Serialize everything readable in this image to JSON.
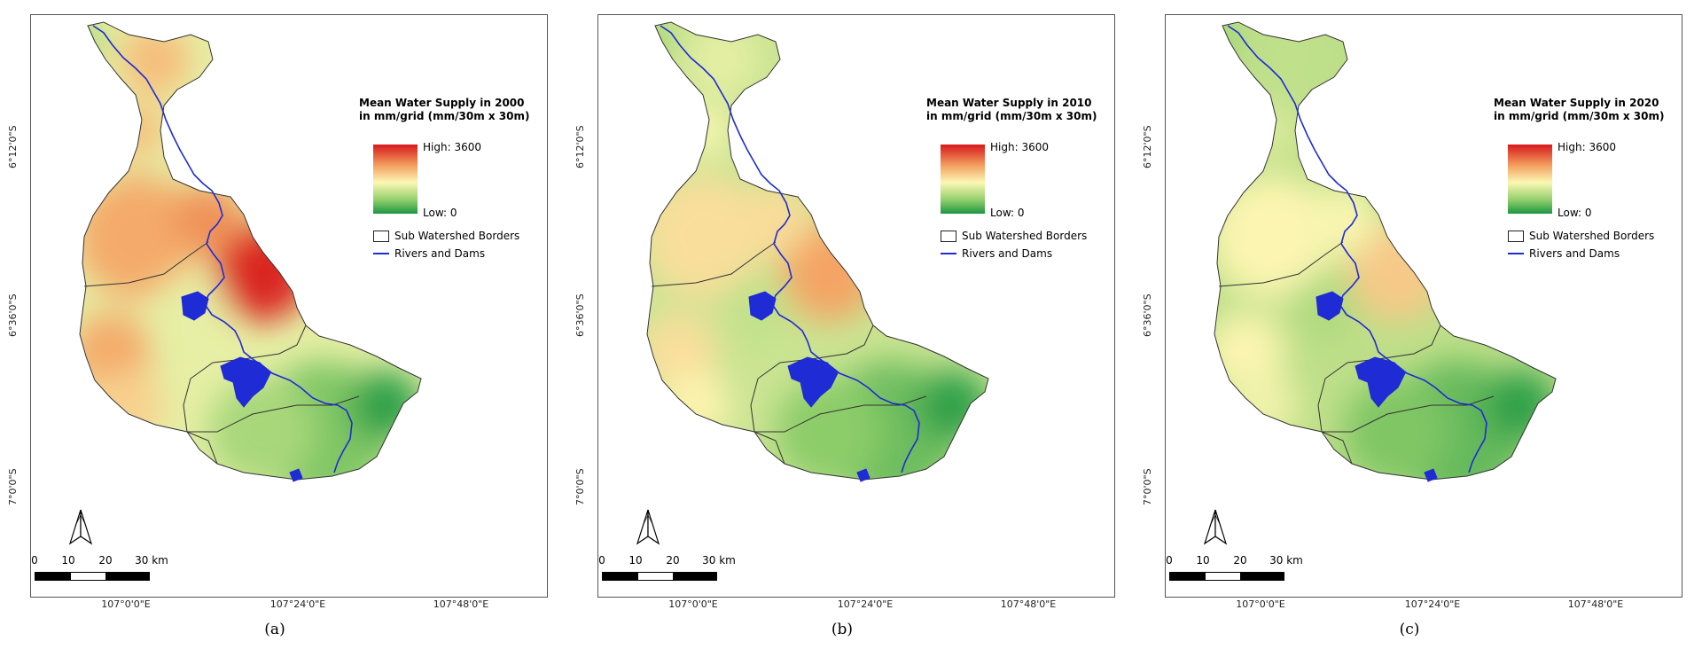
{
  "colors": {
    "high": "#d7191c",
    "mid": "#fbf7b3",
    "low": "#1a9641",
    "rivers": "#1f2bd4",
    "borders": "#333333"
  },
  "legend_common": {
    "high_label": "High: 3600",
    "low_label": "Low: 0",
    "borders_label": "Sub Watershed Borders",
    "rivers_label": "Rivers and Dams",
    "north_icon": "north-arrow-icon"
  },
  "scale_bar": {
    "labels": [
      "0",
      "10",
      "20",
      "30 km"
    ]
  },
  "graticule": {
    "latitudes": [
      "6°12'0\"S",
      "6°36'0\"S",
      "7°0'0\"S"
    ],
    "longitudes": [
      "107°0'0\"E",
      "107°24'0\"E",
      "107°48'0\"E"
    ]
  },
  "panels": [
    {
      "caption": "(a)",
      "title_line1": "Mean Water Supply in 2000",
      "title_line2": "in mm/grid (mm/30m x 30m)",
      "intensity": 1.0
    },
    {
      "caption": "(b)",
      "title_line1": "Mean Water Supply in 2010",
      "title_line2": "in mm/grid (mm/30m x 30m)",
      "intensity": 0.55
    },
    {
      "caption": "(c)",
      "title_line1": "Mean Water Supply in 2020",
      "title_line2": "in mm/grid (mm/30m x 30m)",
      "intensity": 0.35
    }
  ]
}
